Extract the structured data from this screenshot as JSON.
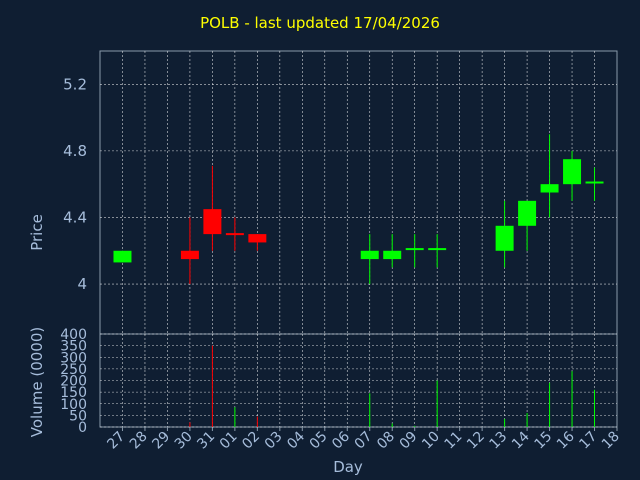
{
  "title": "POLB - last updated 17/04/2026",
  "colors": {
    "background": "#0f1e32",
    "title": "#ffff00",
    "up": "#00ff00",
    "down": "#ff0000",
    "grid": "#ffffff",
    "text": "#a6bddb"
  },
  "chart_data": [
    {
      "type": "candlestick",
      "ylabel": "Price",
      "ylim": [
        3.7,
        5.4
      ],
      "yticks": [
        "4",
        "4.4",
        "4.8",
        "5.2"
      ],
      "grid": true,
      "categories": [
        "27",
        "28",
        "29",
        "30",
        "31",
        "01",
        "02",
        "03",
        "04",
        "05",
        "06",
        "07",
        "08",
        "09",
        "10",
        "11",
        "12",
        "13",
        "14",
        "15",
        "16",
        "17",
        "18"
      ],
      "candles": [
        {
          "day": "27",
          "open": 4.13,
          "high": 4.2,
          "low": 4.13,
          "close": 4.2
        },
        {
          "day": "30",
          "open": 4.2,
          "high": 4.4,
          "low": 4.0,
          "close": 4.15
        },
        {
          "day": "31",
          "open": 4.45,
          "high": 4.71,
          "low": 4.2,
          "close": 4.3
        },
        {
          "day": "01",
          "open": 4.3,
          "high": 4.4,
          "low": 4.2,
          "close": 4.29
        },
        {
          "day": "02",
          "open": 4.3,
          "high": 4.3,
          "low": 4.2,
          "close": 4.25
        },
        {
          "day": "07",
          "open": 4.15,
          "high": 4.3,
          "low": 4.0,
          "close": 4.2
        },
        {
          "day": "08",
          "open": 4.15,
          "high": 4.3,
          "low": 4.1,
          "close": 4.2
        },
        {
          "day": "09",
          "open": 4.2,
          "high": 4.3,
          "low": 4.1,
          "close": 4.21
        },
        {
          "day": "10",
          "open": 4.2,
          "high": 4.3,
          "low": 4.1,
          "close": 4.21
        },
        {
          "day": "13",
          "open": 4.2,
          "high": 4.5,
          "low": 4.1,
          "close": 4.35
        },
        {
          "day": "14",
          "open": 4.35,
          "high": 4.5,
          "low": 4.2,
          "close": 4.5
        },
        {
          "day": "15",
          "open": 4.55,
          "high": 4.9,
          "low": 4.4,
          "close": 4.6
        },
        {
          "day": "16",
          "open": 4.6,
          "high": 4.8,
          "low": 4.5,
          "close": 4.75
        },
        {
          "day": "17",
          "open": 4.6,
          "high": 4.7,
          "low": 4.5,
          "close": 4.61
        }
      ]
    },
    {
      "type": "bar",
      "ylabel": "Volume (0000)",
      "xlabel": "Day",
      "ylim": [
        0,
        400
      ],
      "yticks": [
        "0",
        "50",
        "100",
        "150",
        "200",
        "250",
        "300",
        "350",
        "400"
      ],
      "grid": true,
      "categories": [
        "27",
        "28",
        "29",
        "30",
        "31",
        "01",
        "02",
        "03",
        "04",
        "05",
        "06",
        "07",
        "08",
        "09",
        "10",
        "11",
        "12",
        "13",
        "14",
        "15",
        "16",
        "17",
        "18"
      ],
      "bars": [
        {
          "day": "27",
          "value": 0,
          "direction": "up"
        },
        {
          "day": "30",
          "value": 20,
          "direction": "down"
        },
        {
          "day": "31",
          "value": 350,
          "direction": "down"
        },
        {
          "day": "01",
          "value": 85,
          "direction": "up"
        },
        {
          "day": "02",
          "value": 45,
          "direction": "down"
        },
        {
          "day": "07",
          "value": 145,
          "direction": "up"
        },
        {
          "day": "08",
          "value": 15,
          "direction": "up"
        },
        {
          "day": "09",
          "value": 5,
          "direction": "up"
        },
        {
          "day": "10",
          "value": 200,
          "direction": "up"
        },
        {
          "day": "13",
          "value": 35,
          "direction": "up"
        },
        {
          "day": "14",
          "value": 60,
          "direction": "up"
        },
        {
          "day": "15",
          "value": 190,
          "direction": "up"
        },
        {
          "day": "16",
          "value": 240,
          "direction": "up"
        },
        {
          "day": "17",
          "value": 160,
          "direction": "up"
        }
      ]
    }
  ]
}
